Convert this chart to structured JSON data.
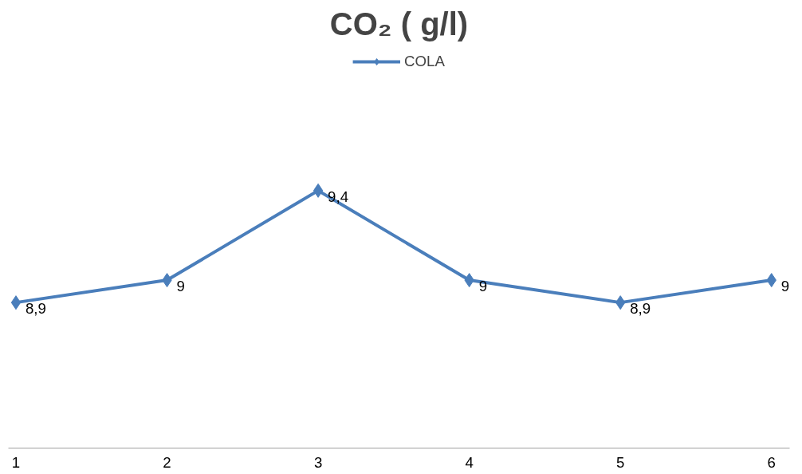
{
  "chart_data": {
    "type": "line",
    "title": "CO₂ ( g/l)",
    "categories": [
      "1",
      "2",
      "3",
      "4",
      "5",
      "6"
    ],
    "series": [
      {
        "name": "COLA",
        "color": "#4a7ebb",
        "values": [
          8.9,
          9,
          9.4,
          9,
          8.9,
          9
        ],
        "value_labels": [
          "8,9",
          "9",
          "9,4",
          "9",
          "8,9",
          "9"
        ]
      }
    ],
    "tick_labels": "x",
    "grid": false,
    "legend": "top",
    "marker": "diamond",
    "line_style": "solid"
  }
}
